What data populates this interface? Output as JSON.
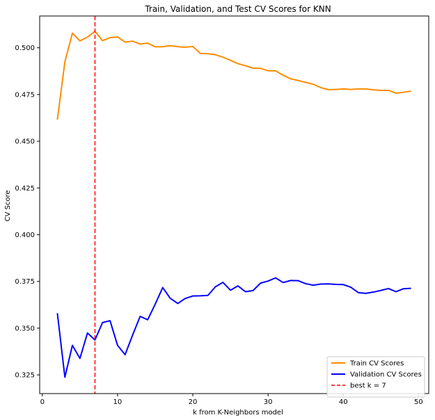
{
  "chart_data": {
    "type": "line",
    "title": "Train, Validation, and Test CV Scores for KNN",
    "xlabel": "k from K-Neighbors model",
    "ylabel": "CV Score",
    "xlim": [
      -0.35,
      51.35
    ],
    "ylim": [
      0.315,
      0.517
    ],
    "xticks": [
      0,
      10,
      20,
      30,
      40,
      50
    ],
    "yticks": [
      0.325,
      0.35,
      0.375,
      0.4,
      0.425,
      0.45,
      0.475,
      0.5
    ],
    "ytick_labels": [
      "0.325",
      "0.350",
      "0.375",
      "0.400",
      "0.425",
      "0.450",
      "0.475",
      "0.500"
    ],
    "grid": false,
    "legend_position": "lower-right",
    "x": [
      2,
      3,
      4,
      5,
      6,
      7,
      8,
      9,
      10,
      11,
      12,
      13,
      14,
      15,
      16,
      17,
      18,
      19,
      20,
      21,
      22,
      23,
      24,
      25,
      26,
      27,
      28,
      29,
      30,
      31,
      32,
      33,
      34,
      35,
      36,
      37,
      38,
      39,
      40,
      41,
      42,
      43,
      44,
      45,
      46,
      47,
      48,
      49
    ],
    "series": [
      {
        "name": "Train CV Scores",
        "color": "#ff8c00",
        "style": "solid",
        "values": [
          0.4615,
          0.4925,
          0.5078,
          0.5037,
          0.5057,
          0.5088,
          0.5038,
          0.5054,
          0.5058,
          0.503,
          0.5035,
          0.502,
          0.5025,
          0.5005,
          0.5006,
          0.5011,
          0.5006,
          0.5003,
          0.5007,
          0.497,
          0.4968,
          0.4963,
          0.495,
          0.4933,
          0.4915,
          0.4904,
          0.4891,
          0.489,
          0.4877,
          0.4877,
          0.4853,
          0.4834,
          0.4825,
          0.4815,
          0.4805,
          0.4787,
          0.4776,
          0.4777,
          0.478,
          0.4777,
          0.478,
          0.478,
          0.4775,
          0.4772,
          0.4772,
          0.4757,
          0.4762,
          0.4768
        ]
      },
      {
        "name": "Validation CV Scores",
        "color": "#0000ff",
        "style": "solid",
        "values": [
          0.358,
          0.3238,
          0.3408,
          0.3338,
          0.3474,
          0.3437,
          0.353,
          0.354,
          0.3408,
          0.3358,
          0.3463,
          0.3563,
          0.3545,
          0.3628,
          0.3717,
          0.366,
          0.3632,
          0.3659,
          0.3672,
          0.3673,
          0.3675,
          0.3721,
          0.3745,
          0.3703,
          0.3726,
          0.3695,
          0.3701,
          0.3741,
          0.3752,
          0.3769,
          0.3744,
          0.3755,
          0.3754,
          0.3738,
          0.373,
          0.3736,
          0.3737,
          0.3734,
          0.3733,
          0.3719,
          0.369,
          0.3686,
          0.3693,
          0.3702,
          0.3712,
          0.3695,
          0.3711,
          0.3713
        ]
      }
    ],
    "vline": {
      "x": 7,
      "name": "best k = 7",
      "color": "#ff0000",
      "style": "dashed"
    }
  }
}
